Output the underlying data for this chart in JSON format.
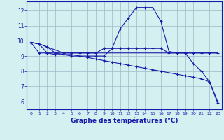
{
  "xlabel": "Graphe des températures (°C)",
  "background_color": "#d4f0f0",
  "line_color": "#1a1aaa",
  "grid_color": "#a0b8c8",
  "xlim": [
    -0.5,
    23.5
  ],
  "ylim": [
    5.5,
    12.6
  ],
  "yticks": [
    6,
    7,
    8,
    9,
    10,
    11,
    12
  ],
  "xticks": [
    0,
    1,
    2,
    3,
    4,
    5,
    6,
    7,
    8,
    9,
    10,
    11,
    12,
    13,
    14,
    15,
    16,
    17,
    18,
    19,
    20,
    21,
    22,
    23
  ],
  "series": [
    {
      "x": [
        0,
        1,
        2,
        3,
        4,
        5,
        6,
        7,
        8,
        9,
        10,
        11,
        12,
        13,
        14,
        15,
        16,
        17,
        18,
        19,
        20,
        21,
        22,
        23
      ],
      "y": [
        9.9,
        9.8,
        9.2,
        9.2,
        9.1,
        9.1,
        9.0,
        9.0,
        9.0,
        9.0,
        9.5,
        10.8,
        11.5,
        12.2,
        12.2,
        12.2,
        11.3,
        9.3,
        9.2,
        9.2,
        8.5,
        8.0,
        7.3,
        5.9
      ],
      "marker": "+"
    },
    {
      "x": [
        0,
        1,
        2,
        3,
        4,
        5,
        6,
        7,
        8,
        9,
        10,
        11,
        12,
        13,
        14,
        15,
        16,
        17,
        18,
        19,
        20,
        21,
        22,
        23
      ],
      "y": [
        9.9,
        9.8,
        9.6,
        9.2,
        9.2,
        9.2,
        9.2,
        9.2,
        9.2,
        9.5,
        9.5,
        9.5,
        9.5,
        9.5,
        9.5,
        9.5,
        9.5,
        9.2,
        9.2,
        9.2,
        9.2,
        9.2,
        9.2,
        9.2
      ],
      "marker": "+"
    },
    {
      "x": [
        0,
        1,
        2,
        3,
        4,
        5,
        6,
        7,
        8,
        9,
        10,
        11,
        12,
        13,
        14,
        15,
        16,
        17,
        18,
        19,
        20,
        21,
        22,
        23
      ],
      "y": [
        9.9,
        9.2,
        9.2,
        9.1,
        9.1,
        9.0,
        9.0,
        8.9,
        8.8,
        8.7,
        8.6,
        8.5,
        8.4,
        8.3,
        8.2,
        8.1,
        8.0,
        7.9,
        7.8,
        7.7,
        7.6,
        7.5,
        7.3,
        6.0
      ],
      "marker": "+"
    },
    {
      "x": [
        0,
        1,
        2,
        3,
        4,
        5,
        6,
        7,
        8,
        9,
        10,
        11,
        12,
        13,
        14,
        15,
        16,
        17,
        18,
        19,
        20,
        21,
        22,
        23
      ],
      "y": [
        9.9,
        9.8,
        9.6,
        9.4,
        9.2,
        9.2,
        9.2,
        9.2,
        9.2,
        9.2,
        9.2,
        9.2,
        9.2,
        9.2,
        9.2,
        9.2,
        9.2,
        9.2,
        9.2,
        9.2,
        9.2,
        9.2,
        9.2,
        9.2
      ],
      "marker": null
    }
  ]
}
